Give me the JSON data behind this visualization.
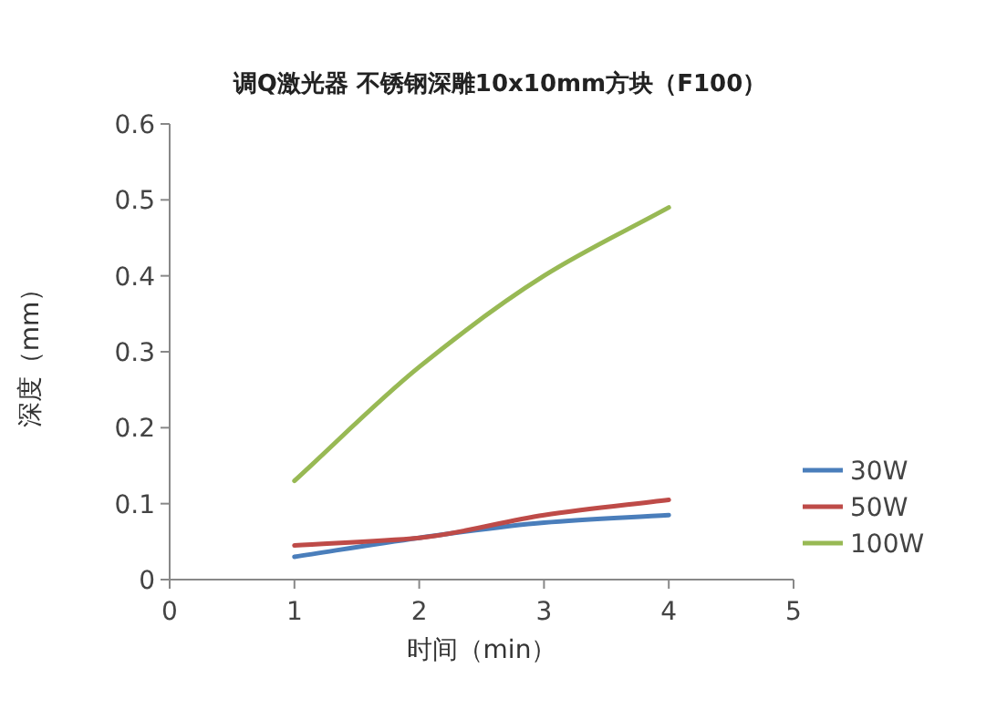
{
  "chart_data": {
    "type": "line",
    "title": "调Q激光器  不锈钢深雕10x10mm方块（F100）",
    "xlabel": "时间（min）",
    "ylabel": "深度（mm）",
    "series": [
      {
        "name": "30W",
        "color": "#4a7ebb",
        "x": [
          1,
          2,
          3,
          4
        ],
        "values": [
          0.03,
          0.055,
          0.075,
          0.085
        ]
      },
      {
        "name": "50W",
        "color": "#be4b48",
        "x": [
          1,
          2,
          3,
          4
        ],
        "values": [
          0.045,
          0.055,
          0.085,
          0.105
        ]
      },
      {
        "name": "100W",
        "color": "#98b954",
        "x": [
          1,
          2,
          3,
          4
        ],
        "values": [
          0.13,
          0.28,
          0.4,
          0.49
        ]
      }
    ],
    "xlim": [
      0,
      5
    ],
    "xticks": [
      0,
      1,
      2,
      3,
      4,
      5
    ],
    "ylim": [
      0,
      0.6
    ],
    "yticks": [
      0,
      0.1,
      0.2,
      0.3,
      0.4,
      0.5,
      0.6
    ],
    "grid": false,
    "legend": "right",
    "marker": "none",
    "line_style": "solid"
  }
}
